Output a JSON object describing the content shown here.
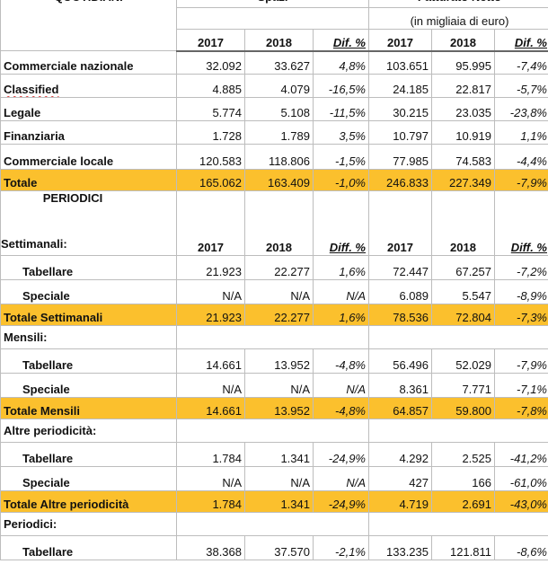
{
  "quotidiani": {
    "section_label": "QUOTIDIANI",
    "spazi_label": "Spazi",
    "fatturato_label": "Fatturato Netto",
    "fatturato_sub": "(in migliaia di euro)",
    "years": [
      "2017",
      "2018",
      "Dif. %",
      "2017",
      "2018",
      "Dif. %"
    ],
    "rows": [
      {
        "label": "Commerciale nazionale",
        "v": [
          "32.092",
          "33.627",
          "4,8%",
          "103.651",
          "95.995",
          "-7,4%"
        ]
      },
      {
        "label": "Classified",
        "v": [
          "4.885",
          "4.079",
          "-16,5%",
          "24.185",
          "22.817",
          "-5,7%"
        ]
      },
      {
        "label": "Legale",
        "v": [
          "5.774",
          "5.108",
          "-11,5%",
          "30.215",
          "23.035",
          "-23,8%"
        ]
      },
      {
        "label": "Finanziaria",
        "v": [
          "1.728",
          "1.789",
          "3,5%",
          "10.797",
          "10.919",
          "1,1%"
        ]
      },
      {
        "label": "Commerciale locale",
        "v": [
          "120.583",
          "118.806",
          "-1,5%",
          "77.985",
          "74.583",
          "-4,4%"
        ]
      }
    ],
    "total": {
      "label": "Totale",
      "v": [
        "165.062",
        "163.409",
        "-1,0%",
        "246.833",
        "227.349",
        "-7,9%"
      ]
    }
  },
  "periodici": {
    "section_label": "PERIODICI",
    "settimanali_label": "Settimanali:",
    "years": [
      "2017",
      "2018",
      "Diff. %",
      "2017",
      "2018",
      "Diff. %"
    ],
    "settimanali": [
      {
        "label": "Tabellare",
        "v": [
          "21.923",
          "22.277",
          "1,6%",
          "72.447",
          "67.257",
          "-7,2%"
        ]
      },
      {
        "label": "Speciale",
        "v": [
          "N/A",
          "N/A",
          "N/A",
          "6.089",
          "5.547",
          "-8,9%"
        ]
      }
    ],
    "totale_settimanali": {
      "label": "Totale Settimanali",
      "v": [
        "21.923",
        "22.277",
        "1,6%",
        "78.536",
        "72.804",
        "-7,3%"
      ]
    },
    "mensili_label": "Mensili:",
    "mensili": [
      {
        "label": "Tabellare",
        "v": [
          "14.661",
          "13.952",
          "-4,8%",
          "56.496",
          "52.029",
          "-7,9%"
        ]
      },
      {
        "label": "Speciale",
        "v": [
          "N/A",
          "N/A",
          "N/A",
          "8.361",
          "7.771",
          "-7,1%"
        ]
      }
    ],
    "totale_mensili": {
      "label": "Totale Mensili",
      "v": [
        "14.661",
        "13.952",
        "-4,8%",
        "64.857",
        "59.800",
        "-7,8%"
      ]
    },
    "altre_label": "Altre periodicità:",
    "altre": [
      {
        "label": "Tabellare",
        "v": [
          "1.784",
          "1.341",
          "-24,9%",
          "4.292",
          "2.525",
          "-41,2%"
        ]
      },
      {
        "label": "Speciale",
        "v": [
          "N/A",
          "N/A",
          "N/A",
          "427",
          "166",
          "-61,0%"
        ]
      }
    ],
    "totale_altre": {
      "label": "Totale Altre periodicità",
      "v": [
        "1.784",
        "1.341",
        "-24,9%",
        "4.719",
        "2.691",
        "-43,0%"
      ]
    },
    "periodici_label": "Periodici:",
    "periodici_partial": {
      "label": "Tabellare",
      "v": [
        "38.368",
        "37.570",
        "-2,1%",
        "133.235",
        "121.811",
        "-8,6%"
      ]
    }
  }
}
